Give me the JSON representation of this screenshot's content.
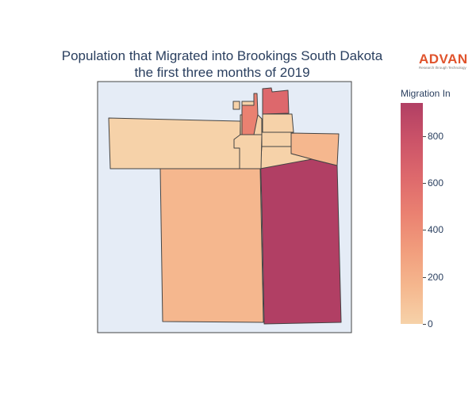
{
  "title": {
    "line1": "Population that Migrated into Brookings South Dakota",
    "line2": "the first three months of 2019"
  },
  "logo": {
    "word": "ADVAN",
    "tagline": "Research through Technology"
  },
  "colorbar": {
    "title": "Migration In",
    "ticks": [
      "0",
      "200",
      "400",
      "600",
      "800"
    ],
    "tick_values": [
      0,
      200,
      400,
      600,
      800
    ],
    "max": 940,
    "colorscale": [
      "#f6d2a9",
      "#f5b78e",
      "#f19c7c",
      "#ea8171",
      "#dd686c",
      "#ca5268",
      "#b13f64"
    ]
  },
  "colors": {
    "map_background": "#e5ecf6",
    "region_border": "#444444",
    "text": "#2a3f5f",
    "logo_accent": "#e0532c"
  }
}
